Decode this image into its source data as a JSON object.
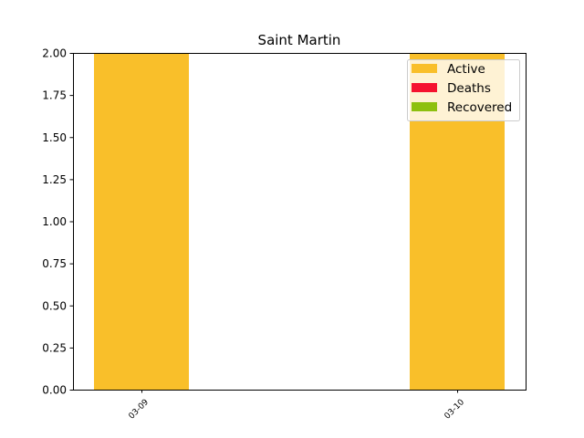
{
  "chart_data": {
    "type": "bar",
    "title": "Saint Martin",
    "xlabel": "",
    "ylabel": "",
    "categories": [
      "03-09",
      "03-10"
    ],
    "stacked": true,
    "series": [
      {
        "name": "Active",
        "values": [
          2,
          2
        ],
        "color": "#f9bf2a"
      },
      {
        "name": "Deaths",
        "values": [
          0,
          0
        ],
        "color": "#f5122f"
      },
      {
        "name": "Recovered",
        "values": [
          0,
          0
        ],
        "color": "#8dc00f"
      }
    ],
    "ylim": [
      0,
      2
    ],
    "yticks": [
      "0.00",
      "0.25",
      "0.50",
      "0.75",
      "1.00",
      "1.25",
      "1.50",
      "1.75",
      "2.00"
    ],
    "legend_position": "top-right",
    "grid": false
  }
}
